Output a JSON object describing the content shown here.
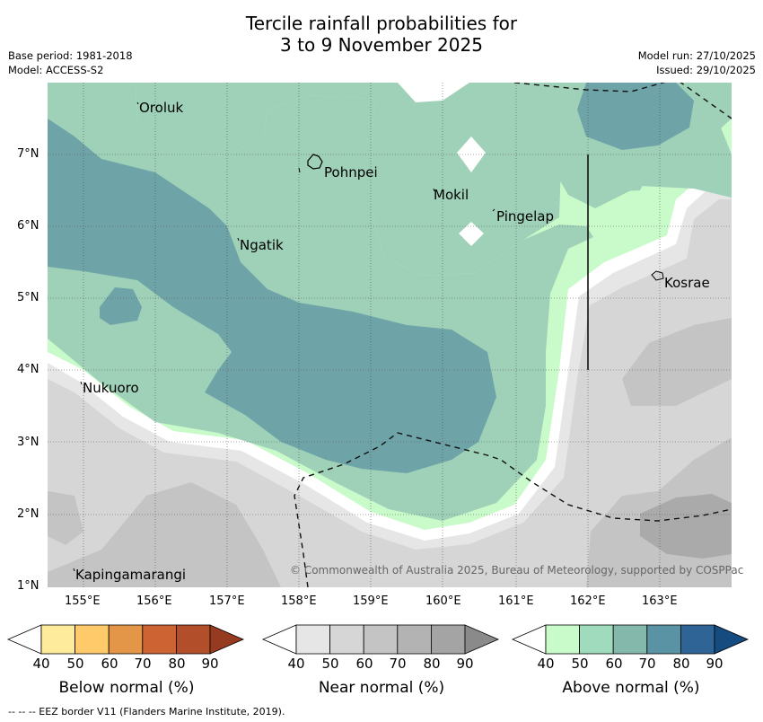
{
  "title": {
    "line1": "Tercile rainfall probabilities for",
    "line2": "3 to 9 November 2025"
  },
  "meta": {
    "base_period": "Base period: 1981-2018",
    "model": "Model: ACCESS-S2",
    "model_run": "Model run: 27/10/2025",
    "issued": "Issued: 29/10/2025"
  },
  "map": {
    "places": {
      "oroluk": "Oroluk",
      "pohnpei": "Pohnpei",
      "mokil": "Mokil",
      "pingelap": "Pingelap",
      "ngatik": "Ngatik",
      "kosrae": "Kosrae",
      "nukuoro": "Nukuoro",
      "kapingamarangi": "Kapingamarangi"
    },
    "lat_ticks": [
      "7°N",
      "6°N",
      "5°N",
      "4°N",
      "3°N",
      "2°N",
      "1°N"
    ],
    "lon_ticks": [
      "155°E",
      "156°E",
      "157°E",
      "158°E",
      "159°E",
      "160°E",
      "161°E",
      "162°E",
      "163°E"
    ],
    "copyright": "© Commonwealth of Australia 2025, Bureau of Meteorology, supported by COSPPac",
    "colors": {
      "above_40": "#c9fac9",
      "above_50": "#9ed1b8",
      "above_60": "#6ea3a8",
      "near_40": "#e6e6e6",
      "near_50": "#d6d6d6",
      "near_60": "#c4c4c4",
      "near_70": "#aaaaaa"
    }
  },
  "colorbars": {
    "below": {
      "title": "Below normal (%)",
      "values": [
        "40",
        "50",
        "60",
        "70",
        "80",
        "90"
      ],
      "colors": [
        "#ffffff",
        "#ffeb9c",
        "#ffca6a",
        "#e39647",
        "#cd6233",
        "#b34e2a",
        "#963a20"
      ]
    },
    "near": {
      "title": "Near normal (%)",
      "values": [
        "40",
        "50",
        "60",
        "70",
        "80",
        "90"
      ],
      "colors": [
        "#ffffff",
        "#e6e6e6",
        "#d6d6d6",
        "#c4c4c4",
        "#b3b3b3",
        "#a4a4a4",
        "#8a8a8a"
      ]
    },
    "above": {
      "title": "Above normal (%)",
      "values": [
        "40",
        "50",
        "60",
        "70",
        "80",
        "90"
      ],
      "colors": [
        "#ffffff",
        "#c9fac9",
        "#a1dbbe",
        "#84b8ab",
        "#5a93a4",
        "#2f6596",
        "#164b80"
      ]
    }
  },
  "footer": {
    "eez": "--  --  -- EEZ border V11 (Flanders Marine Institute, 2019)."
  }
}
